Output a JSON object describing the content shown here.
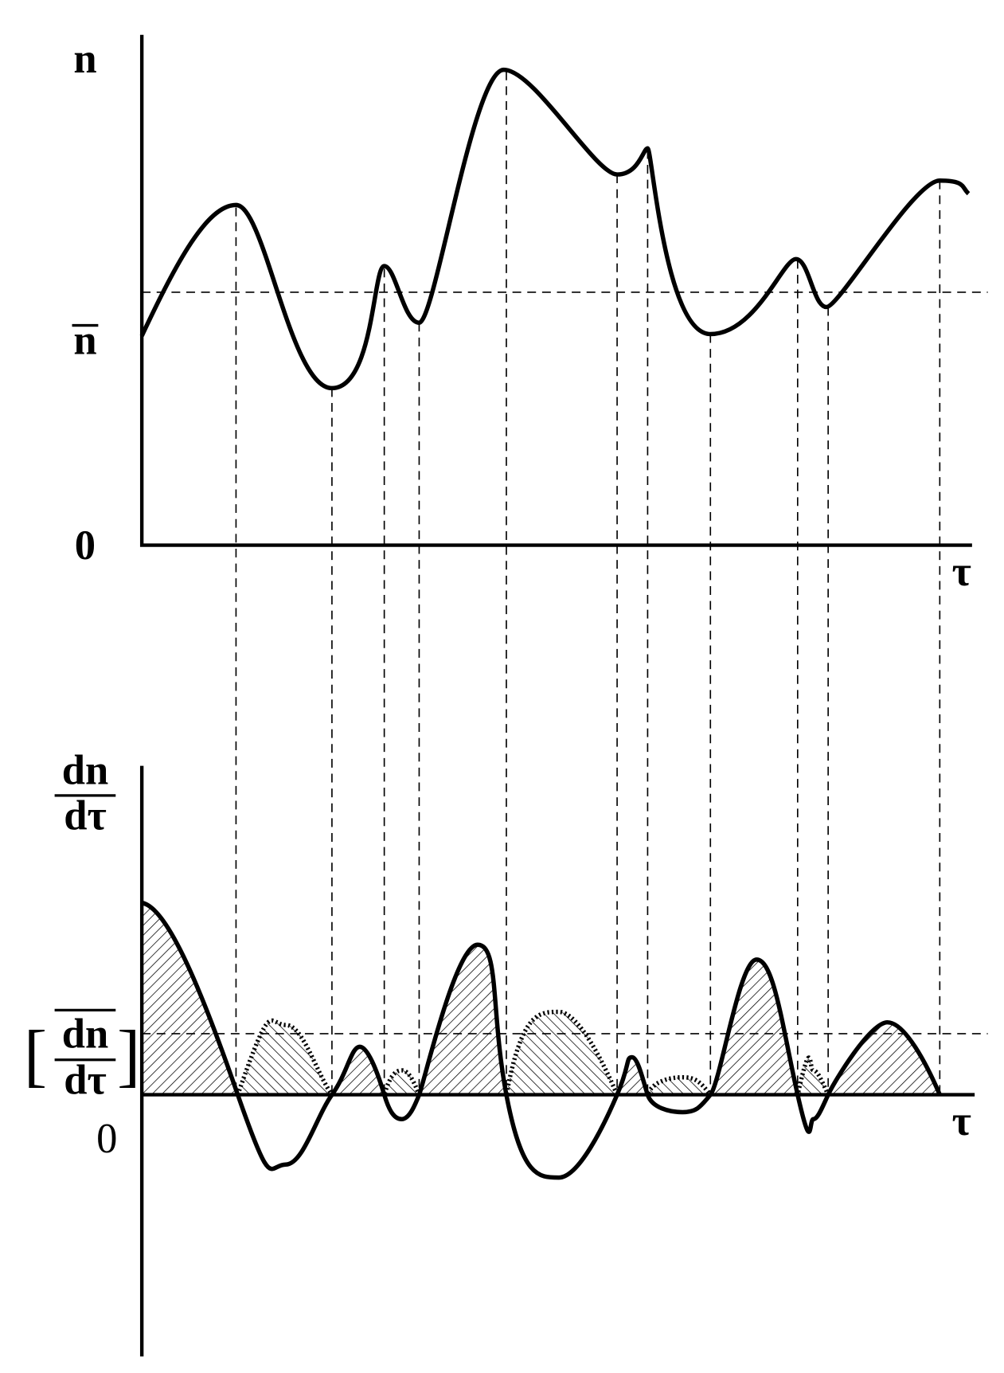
{
  "top_plot": {
    "y_label": "n",
    "mean_label": "n",
    "origin_label": "0",
    "x_label": "τ"
  },
  "bottom_plot": {
    "y_label": {
      "numerator": "dn",
      "denominator": "dτ"
    },
    "mean_label": {
      "open": "[",
      "numerator": "dn",
      "denominator": "dτ",
      "close": "]"
    },
    "origin_label": "0",
    "x_label": "τ"
  }
}
